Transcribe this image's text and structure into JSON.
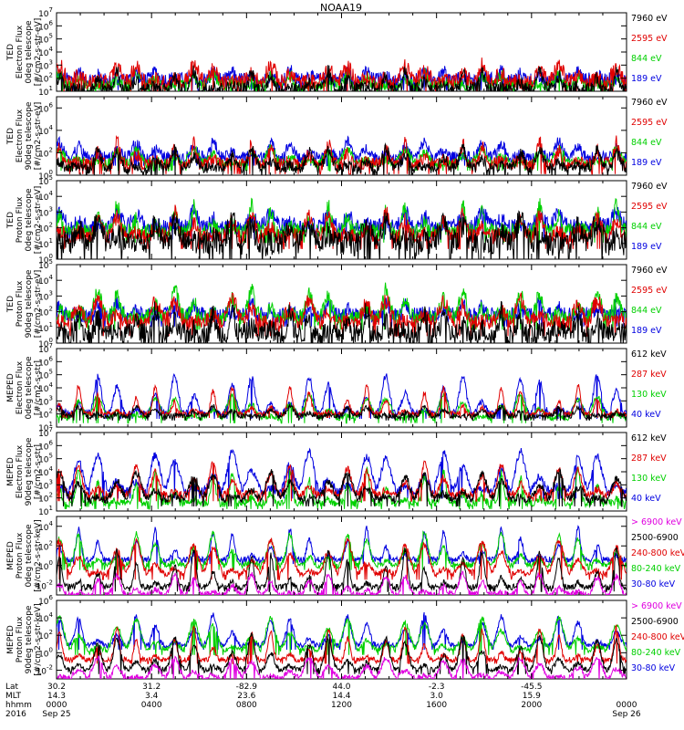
{
  "title": "NOAA19",
  "colors": {
    "black": "#000000",
    "red": "#e00000",
    "green": "#00d000",
    "blue": "#0000e0",
    "magenta": "#e000e0"
  },
  "panels": [
    {
      "ylabel": [
        "TED",
        "Electron Flux",
        "0deg telescope",
        "[#/cm2-s-str-eV]"
      ],
      "ticks": [
        {
          "e": 1,
          "v": "10"
        },
        {
          "e": 2,
          "v": "10"
        },
        {
          "e": 3,
          "v": "10"
        },
        {
          "e": 4,
          "v": "10"
        },
        {
          "e": 5,
          "v": "10"
        },
        {
          "e": 6,
          "v": "10"
        },
        {
          "e": 7,
          "v": "10"
        }
      ],
      "ylim_exp": [
        1,
        7
      ],
      "legend": [
        {
          "text": "7960 eV",
          "color": "black"
        },
        {
          "text": "2595 eV",
          "color": "red"
        },
        {
          "text": "844 eV",
          "color": "green"
        },
        {
          "text": "189 eV",
          "color": "blue"
        }
      ],
      "series": [
        {
          "color": "blue",
          "base": 1.9,
          "peak": 2.6,
          "noise": 0.55
        },
        {
          "color": "green",
          "base": 1.4,
          "peak": 2.4,
          "noise": 0.45
        },
        {
          "color": "red",
          "base": 1.6,
          "peak": 3.0,
          "noise": 0.6
        },
        {
          "color": "black",
          "base": 1.2,
          "peak": 2.6,
          "noise": 0.5
        }
      ]
    },
    {
      "ylabel": [
        "TED",
        "Electron Flux",
        "90deg telescope",
        "[#/cm2-s-str-eV]"
      ],
      "ticks": [
        {
          "e": 0,
          "v": "10"
        },
        {
          "e": 2,
          "v": "10"
        },
        {
          "e": 4,
          "v": "10"
        },
        {
          "e": 6,
          "v": "10"
        }
      ],
      "ylim_exp": [
        0,
        7
      ],
      "legend": [
        {
          "text": "7960 eV",
          "color": "black"
        },
        {
          "text": "2595 eV",
          "color": "red"
        },
        {
          "text": "844 eV",
          "color": "green"
        },
        {
          "text": "189 eV",
          "color": "blue"
        }
      ],
      "series": [
        {
          "color": "blue",
          "base": 1.6,
          "peak": 3.0,
          "noise": 0.5
        },
        {
          "color": "green",
          "base": 1.0,
          "peak": 2.4,
          "noise": 0.4
        },
        {
          "color": "red",
          "base": 1.0,
          "peak": 3.0,
          "noise": 0.6
        },
        {
          "color": "black",
          "base": 0.6,
          "peak": 2.4,
          "noise": 0.5
        }
      ]
    },
    {
      "ylabel": [
        "TED",
        "Proton Flux",
        "0deg telescope",
        "[#/cm2-s-str-eV]"
      ],
      "ticks": [
        {
          "e": 0,
          "v": "10"
        },
        {
          "e": 1,
          "v": "10"
        },
        {
          "e": 2,
          "v": "10"
        },
        {
          "e": 3,
          "v": "10"
        },
        {
          "e": 4,
          "v": "10"
        },
        {
          "e": 5,
          "v": "10"
        }
      ],
      "ylim_exp": [
        0,
        5
      ],
      "legend": [
        {
          "text": "7960 eV",
          "color": "black"
        },
        {
          "text": "2595 eV",
          "color": "red"
        },
        {
          "text": "844 eV",
          "color": "green"
        },
        {
          "text": "189 eV",
          "color": "blue"
        }
      ],
      "series": [
        {
          "color": "blue",
          "base": 2.0,
          "peak": 3.0,
          "noise": 0.5
        },
        {
          "color": "green",
          "base": 1.8,
          "peak": 3.5,
          "noise": 0.5
        },
        {
          "color": "red",
          "base": 1.4,
          "peak": 3.0,
          "noise": 0.5
        },
        {
          "color": "black",
          "base": 0.9,
          "peak": 2.4,
          "noise": 0.8
        }
      ]
    },
    {
      "ylabel": [
        "TED",
        "Proton Flux",
        "90deg telescope",
        "[#/cm2-s-str-eV]"
      ],
      "ticks": [
        {
          "e": 0,
          "v": "10"
        },
        {
          "e": 1,
          "v": "10"
        },
        {
          "e": 2,
          "v": "10"
        },
        {
          "e": 3,
          "v": "10"
        },
        {
          "e": 4,
          "v": "10"
        },
        {
          "e": 5,
          "v": "10"
        }
      ],
      "ylim_exp": [
        0,
        5
      ],
      "legend": [
        {
          "text": "7960 eV",
          "color": "black"
        },
        {
          "text": "2595 eV",
          "color": "red"
        },
        {
          "text": "844 eV",
          "color": "green"
        },
        {
          "text": "189 eV",
          "color": "blue"
        }
      ],
      "series": [
        {
          "color": "blue",
          "base": 1.8,
          "peak": 2.6,
          "noise": 0.5
        },
        {
          "color": "green",
          "base": 1.6,
          "peak": 3.4,
          "noise": 0.5
        },
        {
          "color": "red",
          "base": 1.2,
          "peak": 2.8,
          "noise": 0.5
        },
        {
          "color": "black",
          "base": 0.6,
          "peak": 2.2,
          "noise": 0.7
        }
      ]
    },
    {
      "ylabel": [
        "MEPED",
        "Electron Flux",
        "0deg telescope",
        "[#/cm2-s-str]"
      ],
      "ticks": [
        {
          "e": 1,
          "v": "10"
        },
        {
          "e": 2,
          "v": "10"
        },
        {
          "e": 3,
          "v": "10"
        },
        {
          "e": 4,
          "v": "10"
        },
        {
          "e": 5,
          "v": "10"
        },
        {
          "e": 6,
          "v": "10"
        },
        {
          "e": 7,
          "v": "10"
        }
      ],
      "ylim_exp": [
        1,
        7
      ],
      "legend": [
        {
          "text": "612 keV",
          "color": "black"
        },
        {
          "text": "287 keV",
          "color": "red"
        },
        {
          "text": "130 keV",
          "color": "green"
        },
        {
          "text": "40 keV",
          "color": "blue"
        }
      ],
      "series": [
        {
          "color": "blue",
          "base": 2.0,
          "peak": 5.0,
          "noise": 0.25
        },
        {
          "color": "green",
          "base": 1.6,
          "peak": 3.5,
          "noise": 0.2
        },
        {
          "color": "red",
          "base": 2.0,
          "peak": 4.2,
          "noise": 0.2
        },
        {
          "color": "black",
          "base": 1.8,
          "peak": 2.6,
          "noise": 0.2
        }
      ]
    },
    {
      "ylabel": [
        "MEPED",
        "Electron Flux",
        "90deg telescope",
        "[#/cm2-s-str]"
      ],
      "ticks": [
        {
          "e": 1,
          "v": "10"
        },
        {
          "e": 2,
          "v": "10"
        },
        {
          "e": 3,
          "v": "10"
        },
        {
          "e": 4,
          "v": "10"
        },
        {
          "e": 5,
          "v": "10"
        },
        {
          "e": 6,
          "v": "10"
        },
        {
          "e": 7,
          "v": "10"
        }
      ],
      "ylim_exp": [
        1,
        7
      ],
      "legend": [
        {
          "text": "612 keV",
          "color": "black"
        },
        {
          "text": "287 keV",
          "color": "red"
        },
        {
          "text": "130 keV",
          "color": "green"
        },
        {
          "text": "40 keV",
          "color": "blue"
        }
      ],
      "series": [
        {
          "color": "blue",
          "base": 2.4,
          "peak": 5.6,
          "noise": 0.3
        },
        {
          "color": "green",
          "base": 1.6,
          "peak": 4.2,
          "noise": 0.3
        },
        {
          "color": "red",
          "base": 2.2,
          "peak": 4.6,
          "noise": 0.3
        },
        {
          "color": "black",
          "base": 1.8,
          "peak": 4.0,
          "noise": 0.3
        }
      ]
    },
    {
      "ylabel": [
        "MEPED",
        "Proton Flux",
        "0deg telescope",
        "[#/cm2-s-str-keV]"
      ],
      "ticks": [
        {
          "e": -2,
          "v": "10"
        },
        {
          "e": 0,
          "v": "10"
        },
        {
          "e": 2,
          "v": "10"
        },
        {
          "e": 4,
          "v": "10"
        }
      ],
      "ylim_exp": [
        -3,
        5
      ],
      "legend": [
        {
          "text": "> 6900 keV",
          "color": "magenta"
        },
        {
          "text": "2500-6900",
          "color": "black"
        },
        {
          "text": "240-800 keV",
          "color": "red"
        },
        {
          "text": "80-240 keV",
          "color": "green"
        },
        {
          "text": "30-80 keV",
          "color": "blue"
        }
      ],
      "series": [
        {
          "color": "blue",
          "base": 0.6,
          "peak": 3.8,
          "noise": 0.3
        },
        {
          "color": "green",
          "base": 0.0,
          "peak": 3.4,
          "noise": 0.3
        },
        {
          "color": "red",
          "base": -1.0,
          "peak": 2.6,
          "noise": 0.3
        },
        {
          "color": "black",
          "base": -2.2,
          "peak": 1.6,
          "noise": 0.3
        },
        {
          "color": "magenta",
          "base": -3.0,
          "peak": -0.8,
          "noise": 0.3
        }
      ]
    },
    {
      "ylabel": [
        "MEPED",
        "Proton Flux",
        "90deg telescope",
        "[#/cm2-s-str-keV]"
      ],
      "ticks": [
        {
          "e": -2,
          "v": "10"
        },
        {
          "e": 0,
          "v": "10"
        },
        {
          "e": 2,
          "v": "10"
        },
        {
          "e": 4,
          "v": "10"
        },
        {
          "e": 6,
          "v": "10"
        }
      ],
      "ylim_exp": [
        -3,
        6
      ],
      "legend": [
        {
          "text": "> 6900 keV",
          "color": "magenta"
        },
        {
          "text": "2500-6900",
          "color": "black"
        },
        {
          "text": "240-800 keV",
          "color": "red"
        },
        {
          "text": "80-240 keV",
          "color": "green"
        },
        {
          "text": "30-80 keV",
          "color": "blue"
        }
      ],
      "series": [
        {
          "color": "blue",
          "base": 0.8,
          "peak": 4.4,
          "noise": 0.3
        },
        {
          "color": "green",
          "base": 0.2,
          "peak": 4.0,
          "noise": 0.3
        },
        {
          "color": "red",
          "base": -0.8,
          "peak": 3.0,
          "noise": 0.3
        },
        {
          "color": "black",
          "base": -2.0,
          "peak": 2.0,
          "noise": 0.3
        },
        {
          "color": "magenta",
          "base": -3.0,
          "peak": -0.6,
          "noise": 0.3
        }
      ]
    }
  ],
  "xaxis": {
    "row_labels": [
      "Lat",
      "MLT",
      "hhmm",
      "2016"
    ],
    "ticks": [
      {
        "lat": "30.2",
        "mlt": "14.3",
        "hhmm": "0000",
        "date": "Sep 25"
      },
      {
        "lat": "31.2",
        "mlt": "3.4",
        "hhmm": "0400",
        "date": ""
      },
      {
        "lat": "-82.9",
        "mlt": "23.6",
        "hhmm": "0800",
        "date": ""
      },
      {
        "lat": "44.0",
        "mlt": "14.4",
        "hhmm": "1200",
        "date": ""
      },
      {
        "lat": "-2.3",
        "mlt": "3.0",
        "hhmm": "1600",
        "date": ""
      },
      {
        "lat": "-45.5",
        "mlt": "15.9",
        "hhmm": "2000",
        "date": ""
      },
      {
        "lat": "",
        "mlt": "",
        "hhmm": "0000",
        "date": "Sep 26"
      }
    ]
  },
  "chart_data": {
    "type": "line",
    "title": "NOAA19",
    "x": [
      "0000",
      "0400",
      "0800",
      "1200",
      "1600",
      "2000",
      "0000"
    ],
    "yscale": "log",
    "grid": false,
    "legend_placement": "right of each panel",
    "subplots": [
      {
        "ylabel": "TED Electron Flux 0deg telescope [#/cm2-s-str-eV]",
        "ylim": [
          10,
          10000000
        ],
        "series": [
          {
            "name": "7960 eV"
          },
          {
            "name": "2595 eV"
          },
          {
            "name": "844 eV"
          },
          {
            "name": "189 eV"
          }
        ]
      },
      {
        "ylabel": "TED Electron Flux 90deg telescope [#/cm2-s-str-eV]",
        "ylim": [
          1,
          10000000
        ],
        "series": [
          {
            "name": "7960 eV"
          },
          {
            "name": "2595 eV"
          },
          {
            "name": "844 eV"
          },
          {
            "name": "189 eV"
          }
        ]
      },
      {
        "ylabel": "TED Proton Flux 0deg telescope [#/cm2-s-str-eV]",
        "ylim": [
          1,
          100000
        ],
        "series": [
          {
            "name": "7960 eV"
          },
          {
            "name": "2595 eV"
          },
          {
            "name": "844 eV"
          },
          {
            "name": "189 eV"
          }
        ]
      },
      {
        "ylabel": "TED Proton Flux 90deg telescope [#/cm2-s-str-eV]",
        "ylim": [
          1,
          100000
        ],
        "series": [
          {
            "name": "7960 eV"
          },
          {
            "name": "2595 eV"
          },
          {
            "name": "844 eV"
          },
          {
            "name": "189 eV"
          }
        ]
      },
      {
        "ylabel": "MEPED Electron Flux 0deg telescope [#/cm2-s-str]",
        "ylim": [
          10,
          10000000
        ],
        "series": [
          {
            "name": "612 keV"
          },
          {
            "name": "287 keV"
          },
          {
            "name": "130 keV"
          },
          {
            "name": "40 keV"
          }
        ]
      },
      {
        "ylabel": "MEPED Electron Flux 90deg telescope [#/cm2-s-str]",
        "ylim": [
          10,
          10000000
        ],
        "series": [
          {
            "name": "612 keV"
          },
          {
            "name": "287 keV"
          },
          {
            "name": "130 keV"
          },
          {
            "name": "40 keV"
          }
        ]
      },
      {
        "ylabel": "MEPED Proton Flux 0deg telescope [#/cm2-s-str-keV]",
        "ylim": [
          0.001,
          100000
        ],
        "series": [
          {
            "name": "> 6900 keV"
          },
          {
            "name": "2500-6900"
          },
          {
            "name": "240-800 keV"
          },
          {
            "name": "80-240 keV"
          },
          {
            "name": "30-80 keV"
          }
        ]
      },
      {
        "ylabel": "MEPED Proton Flux 90deg telescope [#/cm2-s-str-keV]",
        "ylim": [
          0.001,
          1000000
        ],
        "series": [
          {
            "name": "> 6900 keV"
          },
          {
            "name": "2500-6900"
          },
          {
            "name": "240-800 keV"
          },
          {
            "name": "80-240 keV"
          },
          {
            "name": "30-80 keV"
          }
        ]
      }
    ]
  }
}
